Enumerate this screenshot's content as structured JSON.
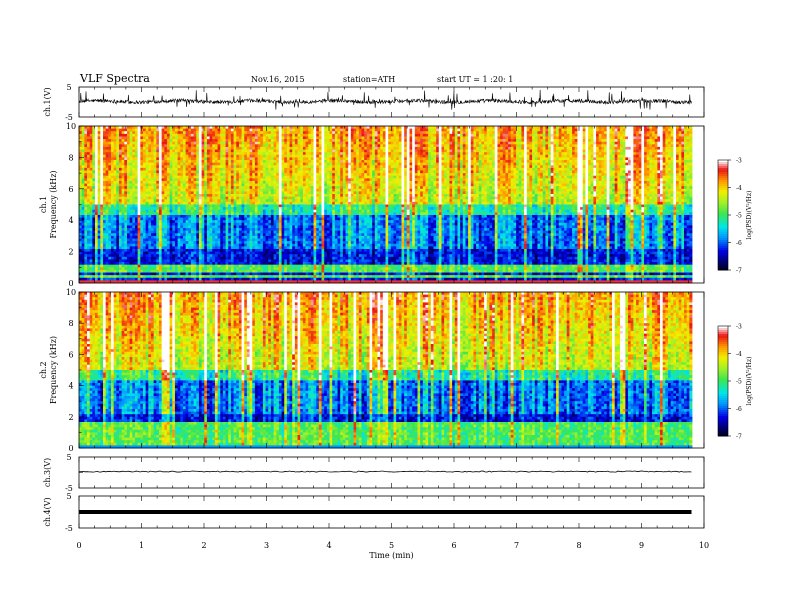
{
  "header": {
    "title": "VLF  Spectra",
    "date": "Nov.16, 2015",
    "station": "station=ATH",
    "start": "start  UT =   1 :20: 1"
  },
  "colors": {
    "spectrum_scale": [
      "#000000",
      "#000080",
      "#0000ff",
      "#00ffff",
      "#00ff00",
      "#ffff00",
      "#ff8000",
      "#ff0000",
      "#ffffff"
    ],
    "trace": "#000000"
  },
  "chart_data": [
    {
      "type": "line",
      "ylabel": "ch.1(V)",
      "yticks": [
        "5",
        "-5"
      ],
      "ylim": [
        -5,
        5
      ],
      "description_series": "noisy waveform around 0 V with sferic spikes"
    },
    {
      "type": "heatmap",
      "ylabel_channel": "ch.1",
      "ylabel": "Frequency  (kHz)",
      "yticks": [
        "10",
        "8",
        "6",
        "4",
        "2",
        "0"
      ],
      "ylim": [
        0,
        10
      ],
      "xlim": [
        0,
        10
      ],
      "colorbar": {
        "label": "log(PSD)(V²/Hz)",
        "ticks": [
          "-3",
          "-4",
          "-5",
          "-6",
          "-7"
        ],
        "range": [
          -7,
          -3
        ]
      }
    },
    {
      "type": "heatmap",
      "ylabel_channel": "ch.2",
      "ylabel": "Frequency  (kHz)",
      "yticks": [
        "10",
        "8",
        "6",
        "4",
        "2",
        "0"
      ],
      "ylim": [
        0,
        10
      ],
      "xlim": [
        0,
        10
      ],
      "colorbar": {
        "label": "log(PSD)(V²/Hz)",
        "ticks": [
          "-3",
          "-4",
          "-5",
          "-6",
          "-7"
        ],
        "range": [
          -7,
          -3
        ]
      }
    },
    {
      "type": "line",
      "ylabel": "ch.3(V)",
      "yticks": [
        "5",
        "-5"
      ],
      "ylim": [
        -5,
        5
      ]
    },
    {
      "type": "line",
      "ylabel": "ch.4(V)",
      "yticks": [
        "5",
        "-5"
      ],
      "ylim": [
        -5,
        5
      ]
    }
  ],
  "xaxis": {
    "label": "Time  (min)",
    "ticks": [
      "0",
      "1",
      "2",
      "3",
      "4",
      "5",
      "6",
      "7",
      "8",
      "9",
      "10"
    ],
    "xlim": [
      0,
      10
    ],
    "data_end": 9.8
  }
}
